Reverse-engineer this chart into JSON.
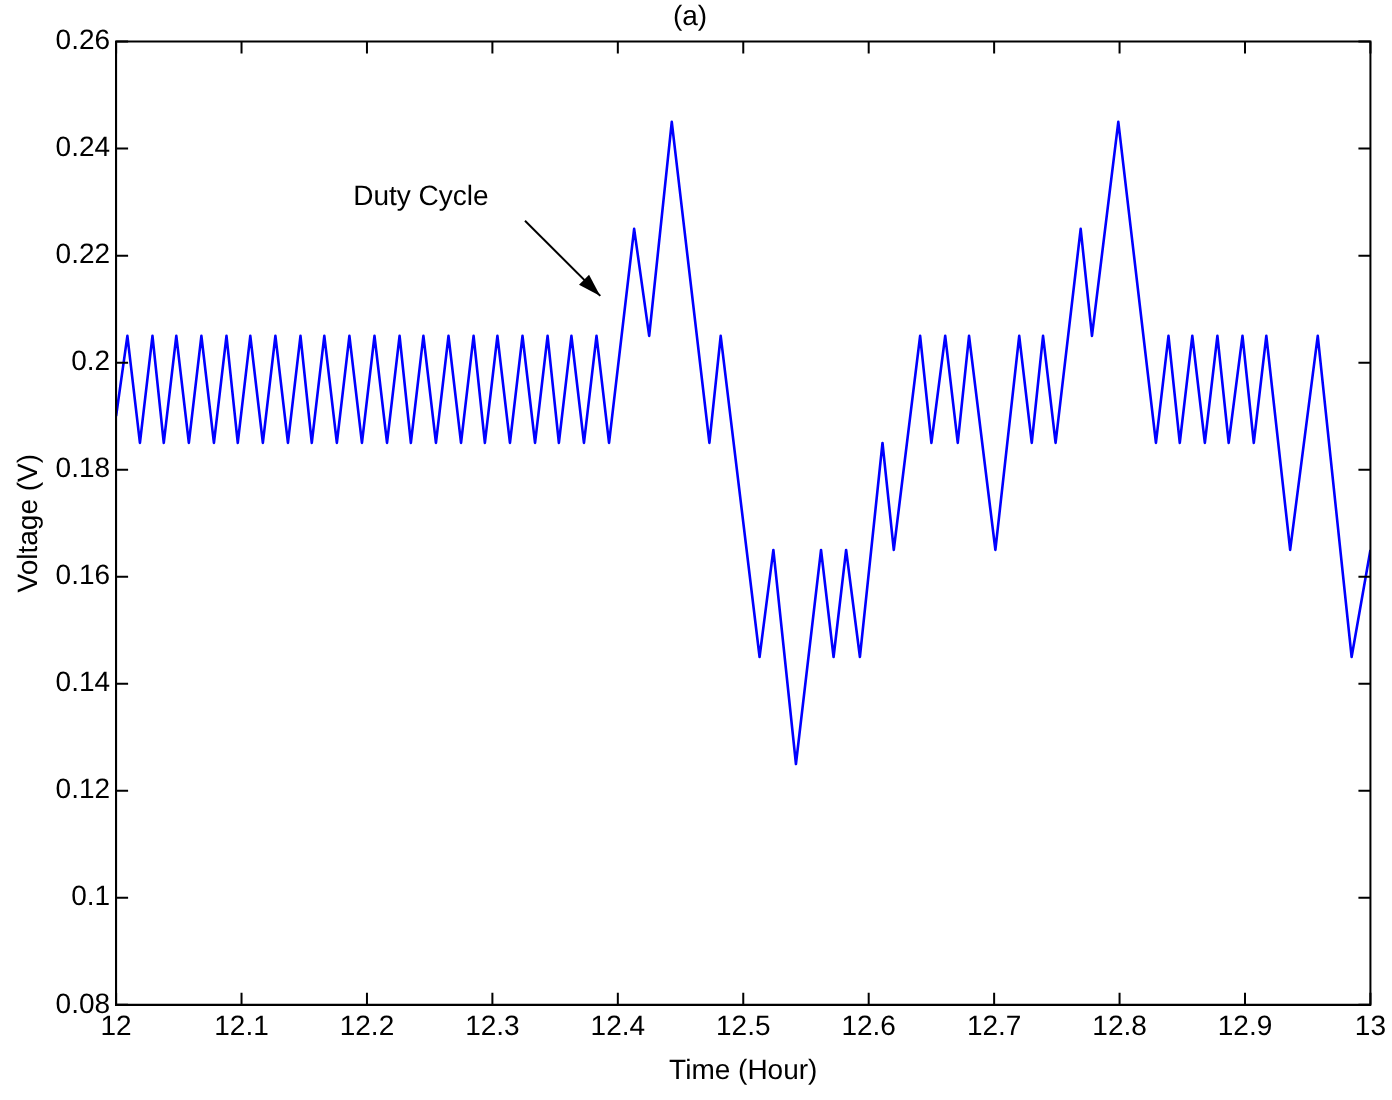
{
  "chart_data": {
    "type": "line",
    "title": "(a)",
    "xlabel": "Time (Hour)",
    "ylabel": "Voltage (V)",
    "x": [
      12.0,
      12.009,
      12.019,
      12.029,
      12.038,
      12.048,
      12.058,
      12.068,
      12.078,
      12.088,
      12.097,
      12.107,
      12.117,
      12.127,
      12.137,
      12.147,
      12.156,
      12.166,
      12.176,
      12.186,
      12.196,
      12.206,
      12.216,
      12.226,
      12.235,
      12.245,
      12.255,
      12.265,
      12.275,
      12.285,
      12.294,
      12.304,
      12.314,
      12.324,
      12.334,
      12.344,
      12.353,
      12.363,
      12.373,
      12.383,
      12.393,
      12.413,
      12.425,
      12.443,
      12.473,
      12.482,
      12.513,
      12.524,
      12.542,
      12.562,
      12.572,
      12.582,
      12.593,
      12.611,
      12.62,
      12.641,
      12.65,
      12.661,
      12.671,
      12.68,
      12.701,
      12.72,
      12.73,
      12.739,
      12.749,
      12.769,
      12.778,
      12.799,
      12.829,
      12.839,
      12.848,
      12.858,
      12.868,
      12.878,
      12.887,
      12.898,
      12.907,
      12.917,
      12.936,
      12.958,
      12.985,
      13.0
    ],
    "series": [
      {
        "color": "#0000ff",
        "values": [
          0.19,
          0.205,
          0.185,
          0.205,
          0.185,
          0.205,
          0.185,
          0.205,
          0.185,
          0.205,
          0.185,
          0.205,
          0.185,
          0.205,
          0.185,
          0.205,
          0.185,
          0.205,
          0.185,
          0.205,
          0.185,
          0.205,
          0.185,
          0.205,
          0.185,
          0.205,
          0.185,
          0.205,
          0.185,
          0.205,
          0.185,
          0.205,
          0.185,
          0.205,
          0.185,
          0.205,
          0.185,
          0.205,
          0.185,
          0.205,
          0.185,
          0.225,
          0.205,
          0.245,
          0.185,
          0.205,
          0.145,
          0.165,
          0.125,
          0.165,
          0.145,
          0.165,
          0.145,
          0.185,
          0.165,
          0.205,
          0.185,
          0.205,
          0.185,
          0.205,
          0.165,
          0.205,
          0.185,
          0.205,
          0.185,
          0.225,
          0.205,
          0.245,
          0.185,
          0.205,
          0.185,
          0.205,
          0.185,
          0.205,
          0.185,
          0.205,
          0.185,
          0.205,
          0.165,
          0.205,
          0.145,
          0.165
        ]
      }
    ],
    "xlim": [
      12,
      13
    ],
    "xticks": [
      12,
      12.1,
      12.2,
      12.3,
      12.4,
      12.5,
      12.6,
      12.7,
      12.8,
      12.9,
      13
    ],
    "ylim": [
      0.08,
      0.26
    ],
    "yticks": [
      0.08,
      0.1,
      0.12,
      0.14,
      0.16,
      0.18,
      0.2,
      0.22,
      0.24,
      0.26
    ],
    "annotations": [
      "Duty Cycle"
    ],
    "grid": false,
    "legend": false,
    "marker": "none",
    "line_style": "solid"
  }
}
